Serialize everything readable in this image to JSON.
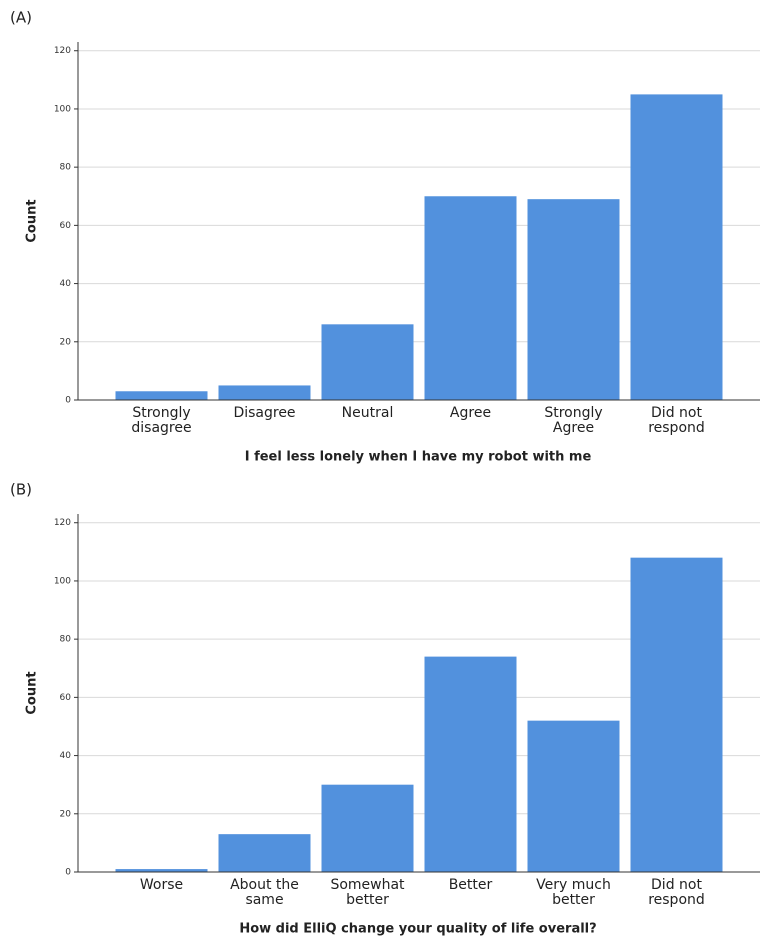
{
  "chart_data": [
    {
      "type": "bar",
      "panel": "(A)",
      "xlabel": "I feel less lonely when I have my robot with me",
      "ylabel": "Count",
      "categories": [
        "Strongly\ndisagree",
        "Disagree",
        "Neutral",
        "Agree",
        "Strongly\nAgree",
        "Did not\nrespond"
      ],
      "values": [
        3,
        5,
        26,
        70,
        69,
        105
      ],
      "color": "#5291dd",
      "ylim": [
        0,
        123
      ],
      "yticks": [
        0,
        20,
        40,
        60,
        80,
        100,
        120
      ],
      "grid": true
    },
    {
      "type": "bar",
      "panel": "(B)",
      "xlabel": "How did ElliQ change your quality of life overall?",
      "ylabel": "Count",
      "categories": [
        "Worse",
        "About the\nsame",
        "Somewhat\nbetter",
        "Better",
        "Very much\nbetter",
        "Did not\nrespond"
      ],
      "values": [
        1,
        13,
        30,
        74,
        52,
        108
      ],
      "color": "#5291dd",
      "ylim": [
        0,
        123
      ],
      "yticks": [
        0,
        20,
        40,
        60,
        80,
        100,
        120
      ],
      "grid": true
    }
  ]
}
